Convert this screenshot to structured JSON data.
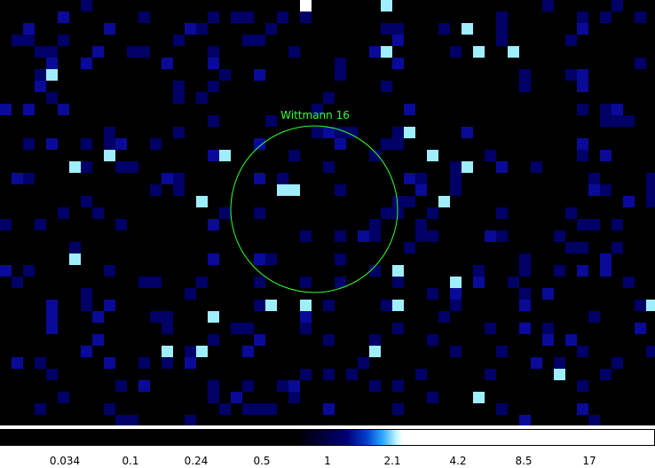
{
  "source_label": "Wittmann 16",
  "colors": {
    "label": "#33ff33",
    "region": "#33ff33",
    "background": "#000000",
    "pixel_shades": [
      "#000066",
      "#0a0a99",
      "#9feefe",
      "#ffffff"
    ]
  },
  "colorbar": {
    "tick_labels": [
      "0.034",
      "0.1",
      "0.24",
      "0.5",
      "1",
      "2.1",
      "4.2",
      "8.5",
      "17"
    ]
  }
}
